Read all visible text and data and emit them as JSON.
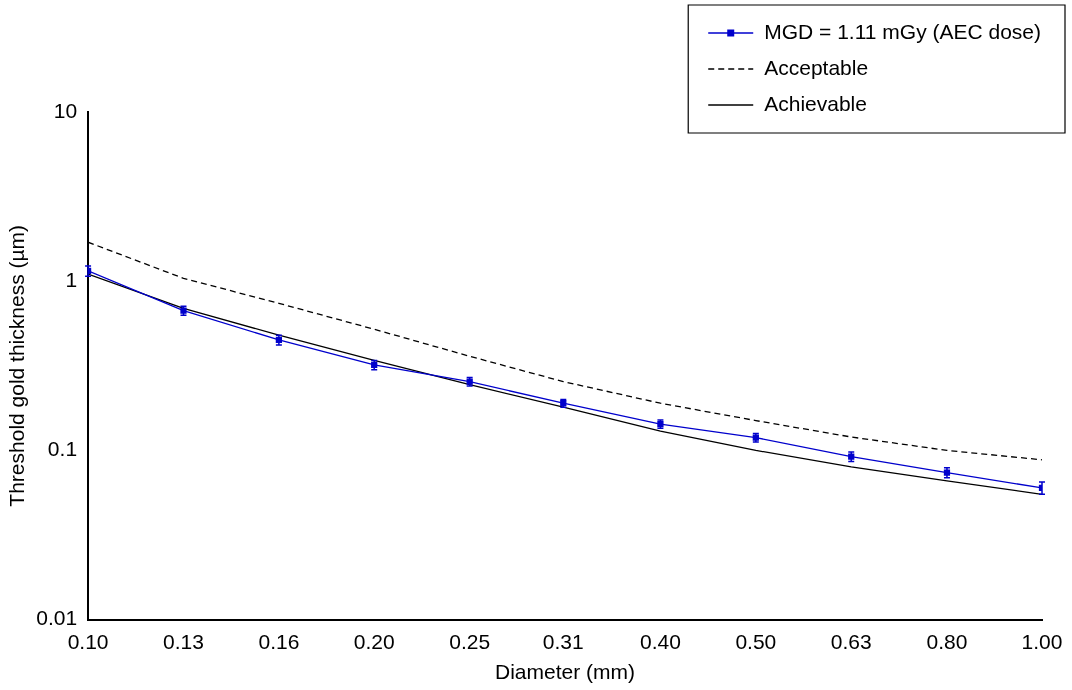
{
  "chart_data": {
    "type": "line",
    "xlabel": "Diameter (mm)",
    "ylabel": "Threshold gold thickness (µm)",
    "log": "xy",
    "grid": false,
    "legend": "top right",
    "xlim": [
      0.1,
      1
    ],
    "ylim": [
      0.01,
      10
    ],
    "xticks": [
      {
        "value": 0.1,
        "label": "0.10"
      },
      {
        "value": 0.1259,
        "label": "0.13"
      },
      {
        "value": 0.1585,
        "label": "0.16"
      },
      {
        "value": 0.1995,
        "label": "0.20"
      },
      {
        "value": 0.2512,
        "label": "0.25"
      },
      {
        "value": 0.3149,
        "label": "0.31"
      },
      {
        "value": 0.3981,
        "label": "0.40"
      },
      {
        "value": 0.5012,
        "label": "0.50"
      },
      {
        "value": 0.631,
        "label": "0.63"
      },
      {
        "value": 0.795,
        "label": "0.80"
      },
      {
        "value": 1,
        "label": "1.00"
      }
    ],
    "yticks": [
      0.01,
      0.1,
      1,
      10
    ],
    "series": [
      {
        "name": "MGD = 1.11 mGy (AEC dose)",
        "color": "#0000cc",
        "marker": "square",
        "line_style": "solid",
        "x": [
          0.1,
          0.1259,
          0.1585,
          0.1995,
          0.2512,
          0.3149,
          0.3981,
          0.5012,
          0.631,
          0.795,
          1
        ],
        "values": [
          1.15,
          0.67,
          0.45,
          0.32,
          0.255,
          0.19,
          0.143,
          0.119,
          0.092,
          0.074,
          0.06
        ],
        "errors": [
          0.08,
          0.04,
          0.03,
          0.02,
          0.015,
          0.01,
          0.008,
          0.007,
          0.006,
          0.005,
          0.005
        ]
      },
      {
        "name": "Acceptable",
        "color": "#000000",
        "marker": "none",
        "line_style": "dashed",
        "x": [
          0.1,
          0.1259,
          0.1585,
          0.1995,
          0.2512,
          0.3149,
          0.3981,
          0.5012,
          0.631,
          0.795,
          1
        ],
        "values": [
          1.7,
          1.04,
          0.74,
          0.52,
          0.36,
          0.255,
          0.19,
          0.15,
          0.12,
          0.1,
          0.088
        ]
      },
      {
        "name": "Achievable",
        "color": "#000000",
        "marker": "none",
        "line_style": "solid",
        "x": [
          0.1,
          0.1259,
          0.1585,
          0.1995,
          0.2512,
          0.3149,
          0.3981,
          0.5012,
          0.631,
          0.795,
          1
        ],
        "values": [
          1.1,
          0.69,
          0.48,
          0.34,
          0.245,
          0.18,
          0.13,
          0.1,
          0.08,
          0.066,
          0.055
        ]
      }
    ]
  }
}
